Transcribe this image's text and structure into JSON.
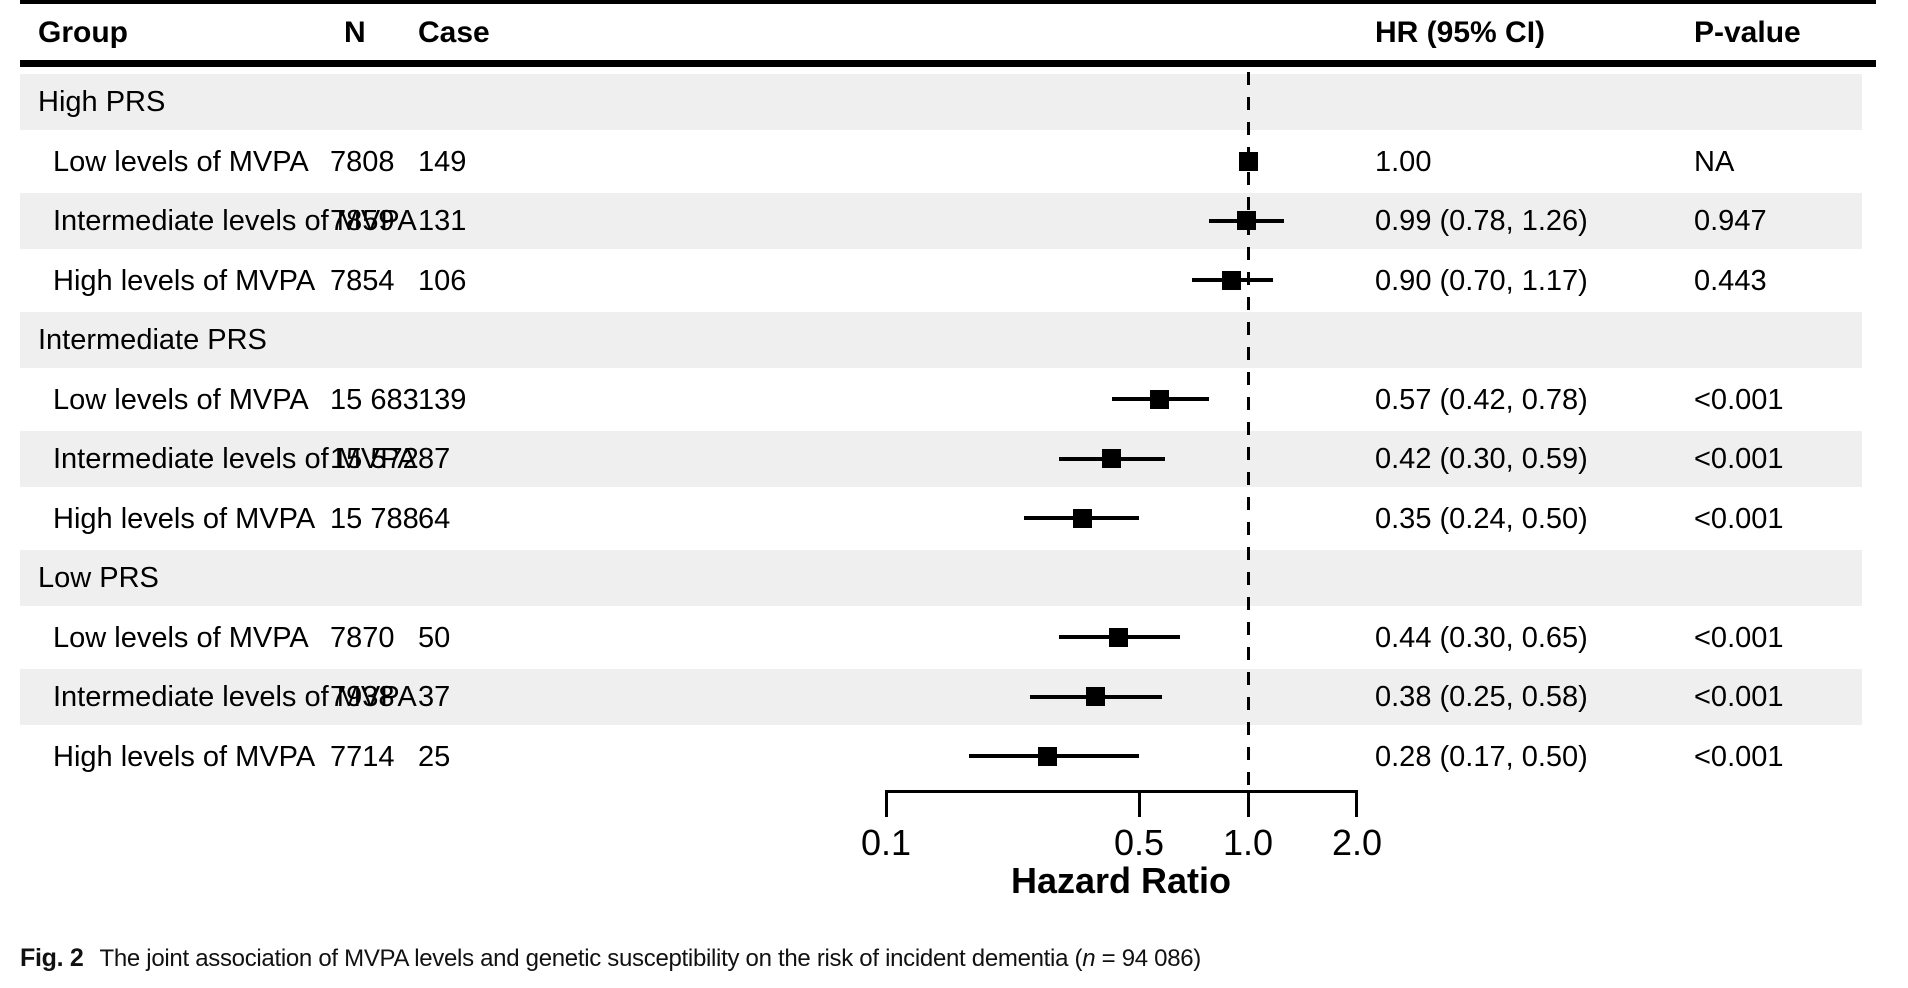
{
  "figure": {
    "header": {
      "group": "Group",
      "n": "N",
      "case": "Case",
      "hr": "HR (95% CI)",
      "p": "P-value"
    },
    "axis": {
      "label": "Hazard Ratio",
      "tick_labels": [
        "0.1",
        "0.5",
        "1.0",
        "2.0"
      ]
    },
    "caption": {
      "tag": "Fig. 2",
      "body": "The joint association of MVPA levels and genetic susceptibility on the risk of incident dementia (",
      "n": "n",
      "tail": " = 94 086)"
    }
  },
  "chart_data": {
    "type": "forest",
    "title": "",
    "xlabel": "Hazard Ratio",
    "x_scale": "log",
    "x_range": [
      0.1,
      2.0
    ],
    "x_ticks": [
      0.1,
      0.5,
      1.0,
      2.0
    ],
    "reference_line": 1.0,
    "grid": false,
    "columns": [
      "Group",
      "N",
      "Case",
      "HR (95% CI)",
      "P-value"
    ],
    "rows": [
      {
        "header": true,
        "label": "High PRS"
      },
      {
        "header": false,
        "label": "Low levels of MVPA",
        "n": "7808",
        "case": "149",
        "hr": 1.0,
        "ci": null,
        "hr_text": "1.00",
        "p": "NA"
      },
      {
        "header": false,
        "label": "Intermediate levels of MVPA",
        "n": "7859",
        "case": "131",
        "hr": 0.99,
        "ci": [
          0.78,
          1.26
        ],
        "hr_text": "0.99 (0.78, 1.26)",
        "p": "0.947"
      },
      {
        "header": false,
        "label": "High levels of MVPA",
        "n": "7854",
        "case": "106",
        "hr": 0.9,
        "ci": [
          0.7,
          1.17
        ],
        "hr_text": "0.90 (0.70, 1.17)",
        "p": "0.443"
      },
      {
        "header": true,
        "label": "Intermediate PRS"
      },
      {
        "header": false,
        "label": "Low levels of MVPA",
        "n": "15 683",
        "case": "139",
        "hr": 0.57,
        "ci": [
          0.42,
          0.78
        ],
        "hr_text": "0.57 (0.42, 0.78)",
        "p": "<0.001"
      },
      {
        "header": false,
        "label": "Intermediate levels of MVPA",
        "n": "15 572",
        "case": "87",
        "hr": 0.42,
        "ci": [
          0.3,
          0.59
        ],
        "hr_text": "0.42 (0.30, 0.59)",
        "p": "<0.001"
      },
      {
        "header": false,
        "label": "High levels of MVPA",
        "n": "15 788",
        "case": "64",
        "hr": 0.35,
        "ci": [
          0.24,
          0.5
        ],
        "hr_text": "0.35 (0.24, 0.50)",
        "p": "<0.001"
      },
      {
        "header": true,
        "label": "Low PRS"
      },
      {
        "header": false,
        "label": "Low levels of MVPA",
        "n": "7870",
        "case": "50",
        "hr": 0.44,
        "ci": [
          0.3,
          0.65
        ],
        "hr_text": "0.44 (0.30, 0.65)",
        "p": "<0.001"
      },
      {
        "header": false,
        "label": "Intermediate levels of MVPA",
        "n": "7938",
        "case": "37",
        "hr": 0.38,
        "ci": [
          0.25,
          0.58
        ],
        "hr_text": "0.38 (0.25, 0.58)",
        "p": "<0.001"
      },
      {
        "header": false,
        "label": "High levels of MVPA",
        "n": "7714",
        "case": "25",
        "hr": 0.28,
        "ci": [
          0.17,
          0.5
        ],
        "hr_text": "0.28 (0.17, 0.50)",
        "p": "<0.001"
      }
    ],
    "colors": {
      "marker": "#000000",
      "line": "#000000",
      "band": "#efefef",
      "text": "#000000"
    }
  }
}
